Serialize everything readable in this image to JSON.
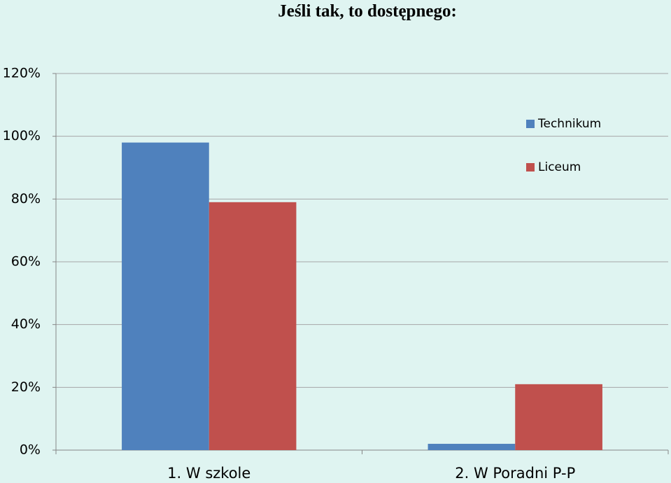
{
  "chart_data": {
    "type": "bar",
    "title": "Jeśli tak, to dostępnego:",
    "categories": [
      "1. W szkole",
      "2. W Poradni P-P"
    ],
    "series": [
      {
        "name": "Technikum",
        "color": "#4f81bd",
        "values": [
          98,
          2
        ]
      },
      {
        "name": "Liceum",
        "color": "#c0504d",
        "values": [
          79,
          21
        ]
      }
    ],
    "ylim": [
      0,
      120
    ],
    "yticks": [
      {
        "value": 0,
        "label": "0%"
      },
      {
        "value": 20,
        "label": "20%"
      },
      {
        "value": 40,
        "label": "40%"
      },
      {
        "value": 60,
        "label": "60%"
      },
      {
        "value": 80,
        "label": "80%"
      },
      {
        "value": 100,
        "label": "100%"
      },
      {
        "value": 120,
        "label": "120%"
      }
    ],
    "grid": true,
    "legend": "right"
  }
}
